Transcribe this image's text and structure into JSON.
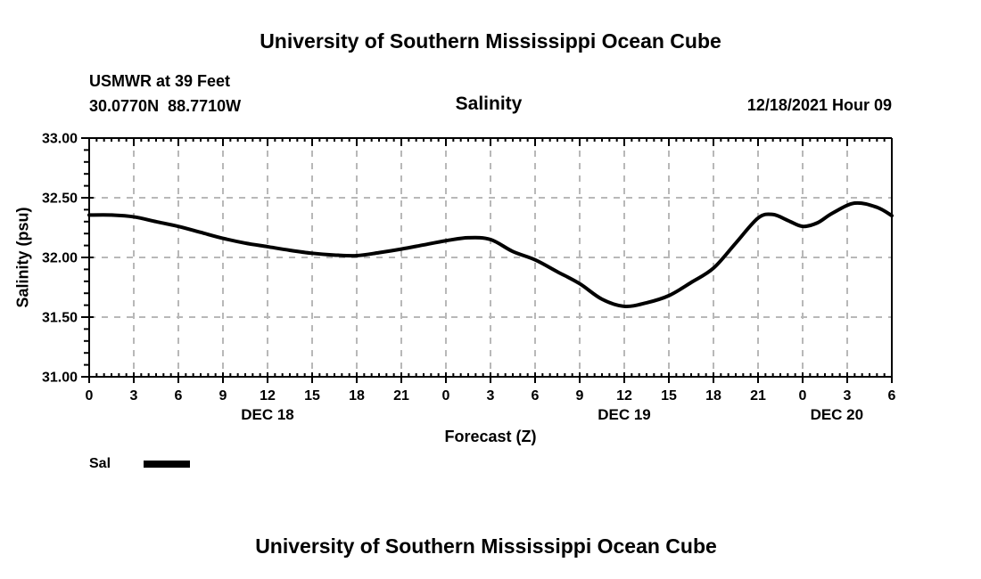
{
  "titles": {
    "main_title": "University of Southern Mississippi Ocean Cube",
    "footer_title": "University of Southern Mississippi Ocean Cube"
  },
  "header": {
    "station": "USMWR at 39 Feet",
    "coordinates": "30.0770N  88.7710W",
    "variable": "Salinity",
    "datetime": "12/18/2021 Hour 09"
  },
  "chart_data": {
    "type": "line",
    "title": "Salinity",
    "xlabel": "Forecast (Z)",
    "ylabel": "Salinity (psu)",
    "ylim": [
      31.0,
      33.0
    ],
    "x_range_hours": [
      0,
      54
    ],
    "y_tick_values": [
      33.0,
      32.5,
      32.0,
      31.5,
      31.0
    ],
    "y_tick_labels": [
      "33.00",
      "32.50",
      "32.00",
      "31.50",
      "31.00"
    ],
    "y_minor_step": 0.1,
    "x_major_tick_hours": 3,
    "x_minor_tick_hours": 0.5,
    "x_tick_labels": [
      "0",
      "3",
      "6",
      "9",
      "12",
      "15",
      "18",
      "21",
      "0",
      "3",
      "6",
      "9",
      "12",
      "15",
      "18",
      "21",
      "0",
      "3",
      "6"
    ],
    "date_labels": [
      {
        "text": "DEC 18",
        "hour": 12
      },
      {
        "text": "DEC 19",
        "hour": 36
      },
      {
        "text": "DEC 20",
        "hour": 50.3
      }
    ],
    "legend": [
      {
        "label": "Sal",
        "color": "#000000"
      }
    ],
    "grid": true,
    "colors": {
      "line": "#000000",
      "grid": "#b8b8b8",
      "axis": "#000000"
    },
    "series": [
      {
        "name": "Sal",
        "x_hours": [
          0,
          1.5,
          3,
          4.5,
          6,
          7.5,
          9,
          10.5,
          12,
          13.5,
          15,
          16.5,
          18,
          19.5,
          21,
          22.5,
          24,
          25.5,
          27,
          28.5,
          30,
          31.5,
          33,
          34.5,
          36,
          37.5,
          39,
          40.5,
          42,
          43.5,
          45,
          46,
          47,
          48,
          49,
          50,
          51.5,
          53,
          54
        ],
        "values": [
          32.355,
          32.355,
          32.34,
          32.3,
          32.26,
          32.21,
          32.16,
          32.12,
          32.09,
          32.06,
          32.035,
          32.02,
          32.015,
          32.04,
          32.07,
          32.105,
          32.14,
          32.165,
          32.15,
          32.05,
          31.98,
          31.88,
          31.78,
          31.65,
          31.59,
          31.62,
          31.68,
          31.79,
          31.91,
          32.12,
          32.33,
          32.36,
          32.31,
          32.26,
          32.29,
          32.37,
          32.455,
          32.42,
          32.35
        ]
      }
    ]
  }
}
